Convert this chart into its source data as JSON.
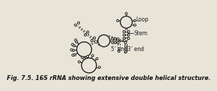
{
  "title": "Fig. 7.5. 16S rRNA showing extensive double helical structure.",
  "title_fontsize": 6.0,
  "bg_color": "#e8e4d8",
  "line_color": "#1a1a1a",
  "circle_face_color": "#e8e4d8",
  "label_loop": "Loop",
  "label_stem": "Stem",
  "label_5end": "5’ end",
  "label_3end": "3’ end"
}
